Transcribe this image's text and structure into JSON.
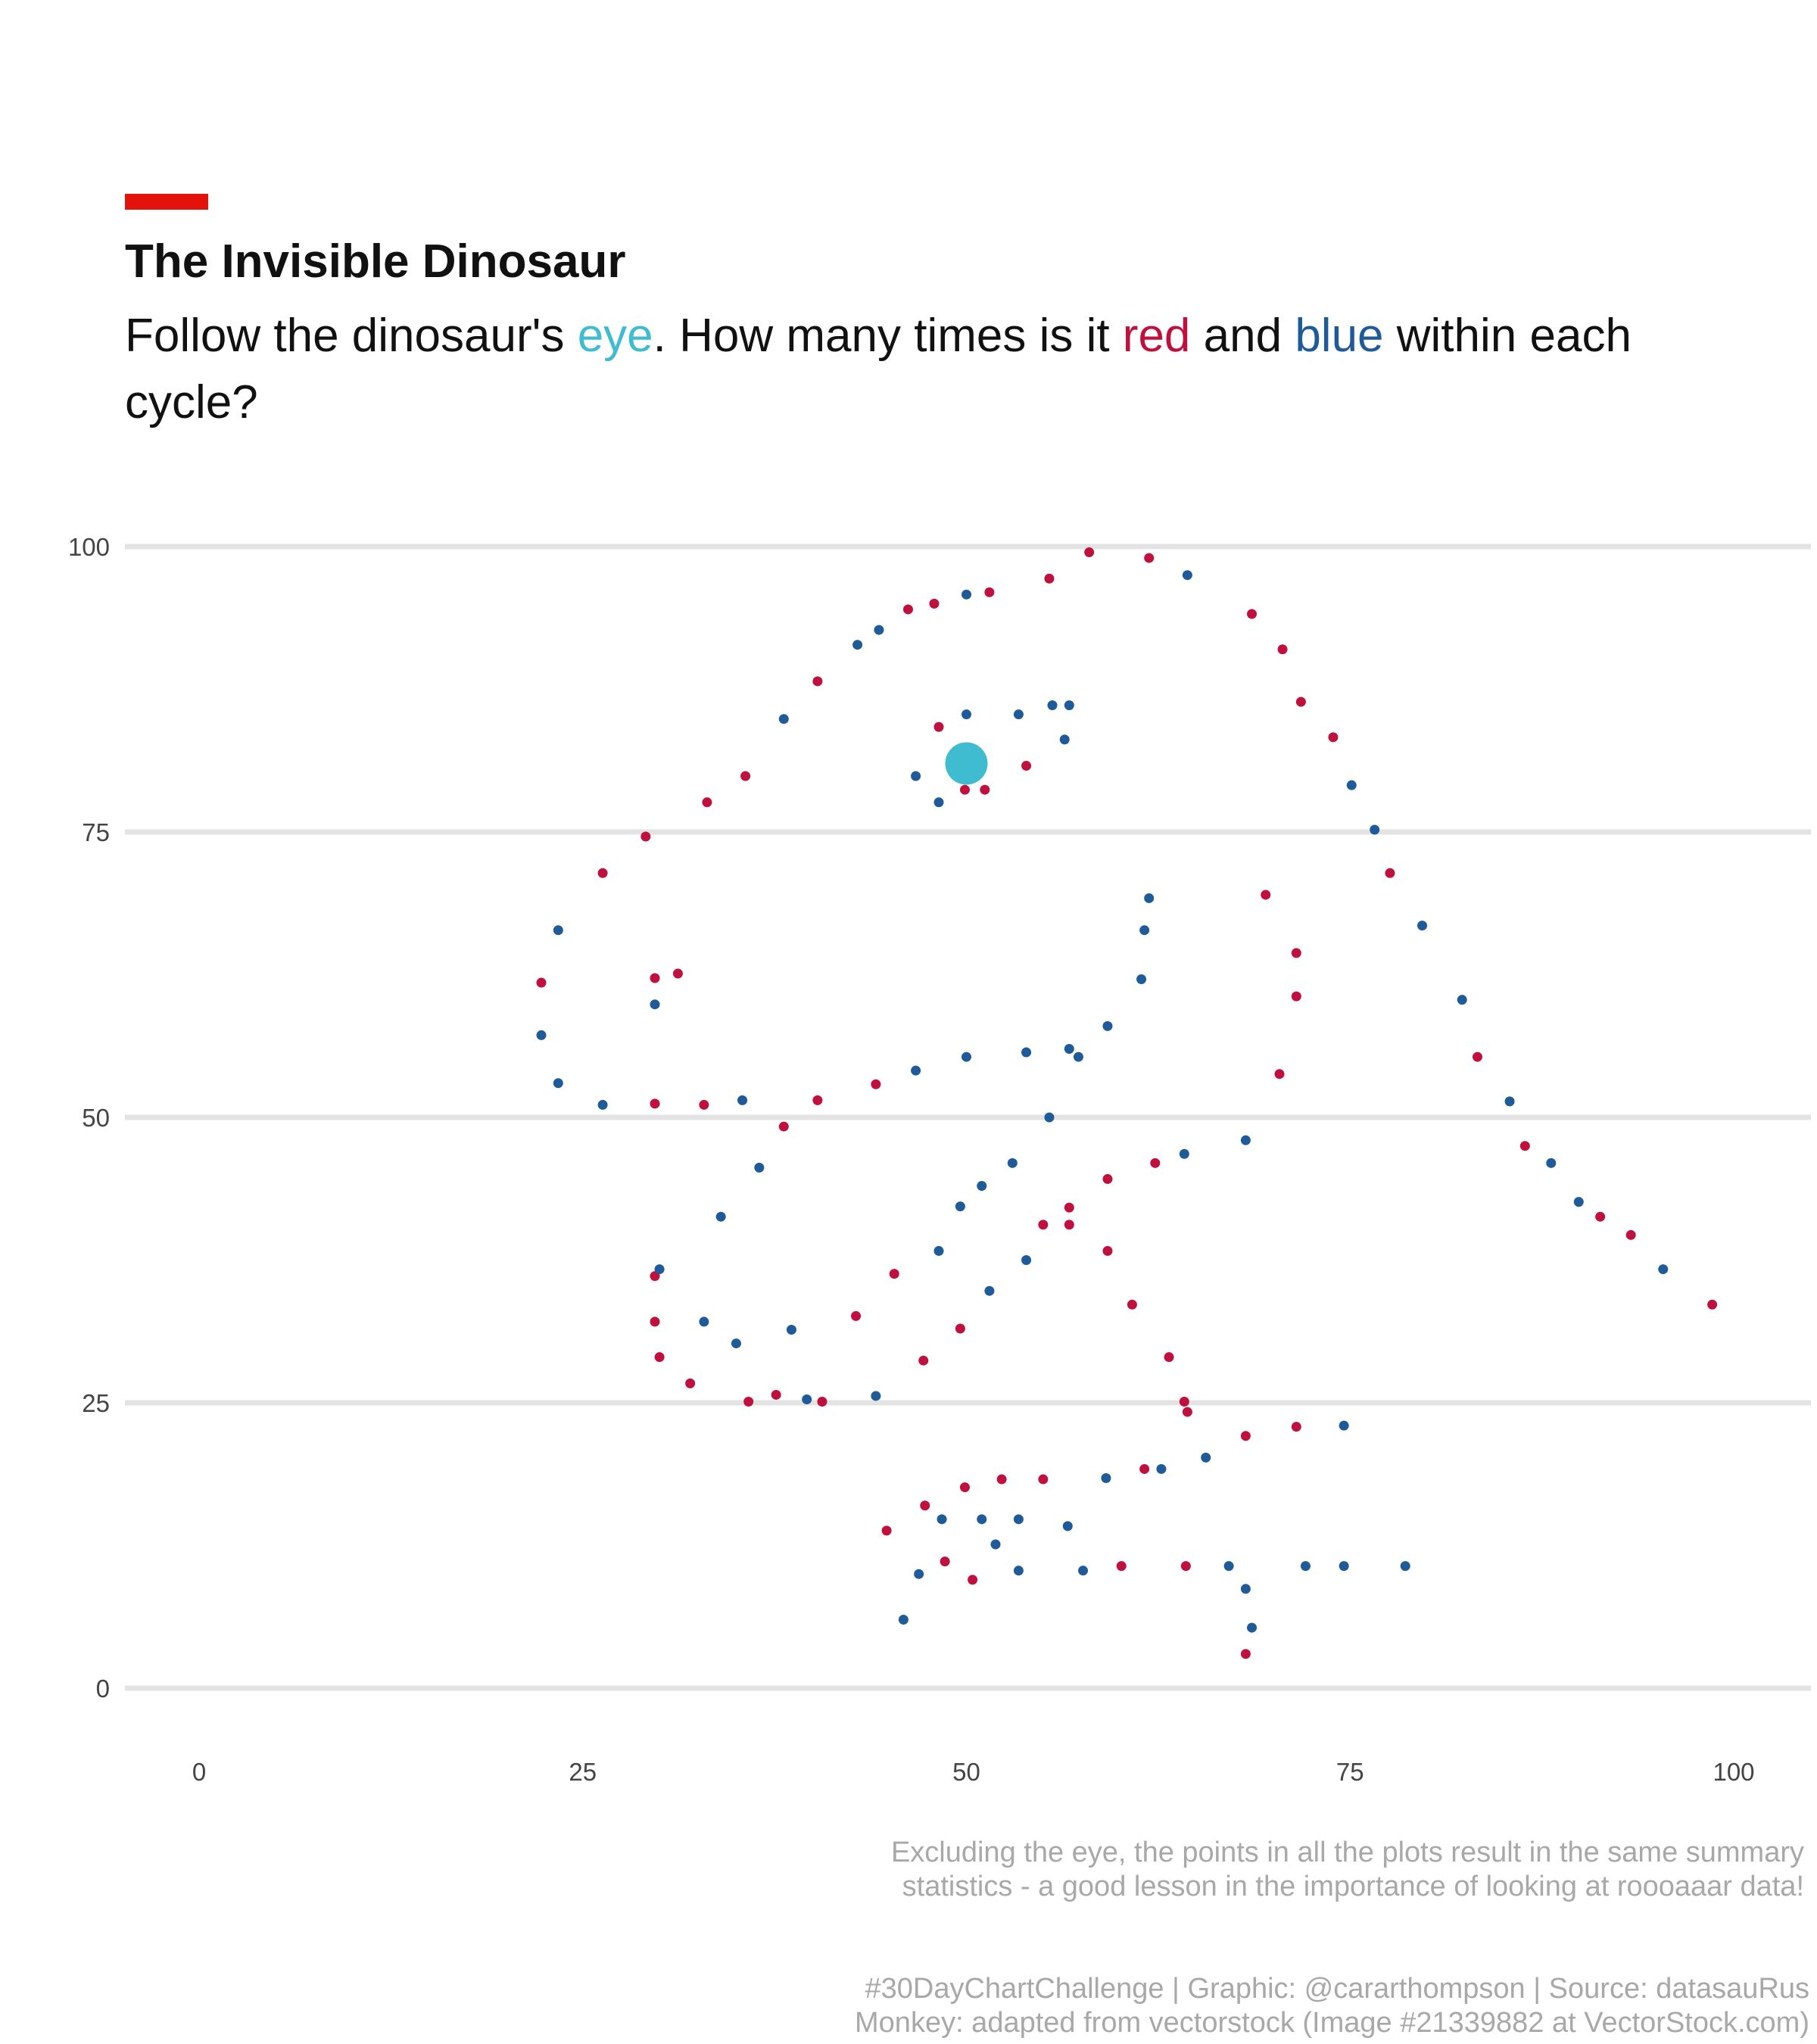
{
  "header": {
    "title": "The Invisible Dinosaur",
    "subtitle_1": "Follow the dinosaur's ",
    "subtitle_eye": "eye",
    "subtitle_2": ". How many times is it ",
    "subtitle_red": "red",
    "subtitle_3": " and ",
    "subtitle_blue": "blue",
    "subtitle_4": " within each cycle?"
  },
  "colors": {
    "accent": "#e3120b",
    "eye": "#40bcd0",
    "red": "#c0103e",
    "blue": "#1f5a99",
    "gridline": "#e3e3e3"
  },
  "note": {
    "line1": "Excluding the eye, the points in all the plots result in the same summary",
    "line2": "statistics - a good lesson in the importance of looking at roooaaar data!"
  },
  "caption": {
    "line1": "#30DayChartChallenge | Graphic: @cararthompson | Source: datasauRus",
    "line2": "Monkey: adapted from vectorstock (Image #21339882 at VectorStock.com)"
  },
  "chart_data": {
    "type": "scatter",
    "xlim": [
      0,
      100
    ],
    "ylim": [
      0,
      100
    ],
    "x_ticks": [
      0,
      25,
      50,
      75,
      100
    ],
    "y_ticks": [
      0,
      25,
      50,
      75,
      100
    ],
    "grid": "horizontal",
    "eye_point": {
      "x": 50.0,
      "y": 81.0
    },
    "series": [
      {
        "color": "red",
        "points": [
          [
            22.3,
            61.8
          ],
          [
            26.3,
            71.4
          ],
          [
            29.1,
            74.6
          ],
          [
            33.1,
            77.6
          ],
          [
            35.6,
            79.9
          ],
          [
            40.3,
            88.2
          ],
          [
            46.2,
            94.5
          ],
          [
            47.9,
            95.0
          ],
          [
            51.5,
            96.0
          ],
          [
            55.4,
            97.2
          ],
          [
            58.0,
            99.5
          ],
          [
            61.9,
            99.0
          ],
          [
            68.6,
            94.1
          ],
          [
            70.6,
            91.0
          ],
          [
            71.8,
            86.4
          ],
          [
            73.9,
            83.3
          ],
          [
            77.6,
            71.4
          ],
          [
            83.3,
            55.3
          ],
          [
            86.4,
            47.5
          ],
          [
            91.3,
            41.3
          ],
          [
            93.3,
            39.7
          ],
          [
            98.6,
            33.6
          ],
          [
            69.5,
            69.5
          ],
          [
            71.5,
            64.4
          ],
          [
            71.5,
            60.6
          ],
          [
            70.4,
            53.8
          ],
          [
            29.7,
            62.2
          ],
          [
            31.2,
            62.6
          ],
          [
            29.7,
            51.2
          ],
          [
            32.9,
            51.1
          ],
          [
            38.1,
            49.2
          ],
          [
            40.3,
            51.5
          ],
          [
            44.1,
            52.9
          ],
          [
            48.2,
            84.2
          ],
          [
            49.9,
            78.7
          ],
          [
            51.2,
            78.7
          ],
          [
            53.9,
            80.8
          ],
          [
            29.7,
            36.1
          ],
          [
            29.7,
            32.1
          ],
          [
            30.0,
            29.0
          ],
          [
            32.0,
            26.7
          ],
          [
            35.8,
            25.1
          ],
          [
            37.6,
            25.7
          ],
          [
            40.6,
            25.1
          ],
          [
            42.8,
            32.6
          ],
          [
            45.3,
            36.3
          ],
          [
            47.2,
            28.7
          ],
          [
            49.6,
            31.5
          ],
          [
            55.0,
            40.6
          ],
          [
            56.7,
            42.1
          ],
          [
            56.7,
            40.6
          ],
          [
            59.2,
            44.6
          ],
          [
            59.2,
            38.3
          ],
          [
            60.8,
            33.6
          ],
          [
            62.3,
            46.0
          ],
          [
            63.2,
            29.0
          ],
          [
            64.2,
            25.1
          ],
          [
            64.4,
            24.2
          ],
          [
            68.2,
            22.1
          ],
          [
            71.5,
            22.9
          ],
          [
            44.8,
            13.8
          ],
          [
            47.3,
            16.0
          ],
          [
            48.6,
            11.1
          ],
          [
            49.9,
            17.6
          ],
          [
            50.4,
            9.5
          ],
          [
            52.3,
            18.3
          ],
          [
            55.0,
            18.3
          ],
          [
            60.1,
            10.7
          ],
          [
            61.6,
            19.2
          ],
          [
            64.3,
            10.7
          ],
          [
            68.2,
            3.0
          ]
        ]
      },
      {
        "color": "blue",
        "points": [
          [
            23.4,
            66.4
          ],
          [
            22.3,
            57.2
          ],
          [
            23.4,
            53.0
          ],
          [
            26.3,
            51.1
          ],
          [
            35.4,
            51.5
          ],
          [
            38.1,
            84.9
          ],
          [
            42.9,
            91.4
          ],
          [
            44.3,
            92.7
          ],
          [
            50.0,
            95.8
          ],
          [
            64.4,
            97.5
          ],
          [
            75.1,
            79.1
          ],
          [
            76.6,
            75.2
          ],
          [
            79.7,
            66.8
          ],
          [
            82.3,
            60.3
          ],
          [
            85.4,
            51.4
          ],
          [
            88.1,
            46.0
          ],
          [
            89.9,
            42.6
          ],
          [
            95.4,
            36.7
          ],
          [
            29.7,
            59.9
          ],
          [
            46.7,
            54.1
          ],
          [
            50.0,
            55.3
          ],
          [
            53.9,
            55.7
          ],
          [
            56.7,
            56.0
          ],
          [
            57.3,
            55.3
          ],
          [
            59.2,
            58.0
          ],
          [
            61.4,
            62.1
          ],
          [
            61.6,
            66.4
          ],
          [
            61.9,
            69.2
          ],
          [
            46.7,
            79.9
          ],
          [
            48.2,
            77.6
          ],
          [
            50.0,
            85.3
          ],
          [
            53.4,
            85.3
          ],
          [
            55.6,
            86.1
          ],
          [
            56.7,
            86.1
          ],
          [
            56.4,
            83.1
          ],
          [
            55.4,
            50.0
          ],
          [
            30.0,
            36.7
          ],
          [
            32.9,
            32.1
          ],
          [
            35.0,
            30.2
          ],
          [
            34.0,
            41.3
          ],
          [
            36.5,
            45.6
          ],
          [
            38.6,
            31.4
          ],
          [
            39.6,
            25.3
          ],
          [
            44.1,
            25.6
          ],
          [
            48.2,
            38.3
          ],
          [
            49.6,
            42.2
          ],
          [
            51.0,
            44.0
          ],
          [
            51.5,
            34.8
          ],
          [
            53.0,
            46.0
          ],
          [
            53.9,
            37.5
          ],
          [
            64.2,
            46.8
          ],
          [
            68.2,
            48.0
          ],
          [
            74.6,
            23.0
          ],
          [
            65.6,
            20.2
          ],
          [
            62.7,
            19.2
          ],
          [
            59.1,
            18.4
          ],
          [
            45.9,
            6.0
          ],
          [
            46.9,
            10.0
          ],
          [
            48.4,
            14.8
          ],
          [
            51.0,
            14.8
          ],
          [
            51.9,
            12.6
          ],
          [
            53.4,
            10.3
          ],
          [
            53.4,
            14.8
          ],
          [
            56.6,
            14.2
          ],
          [
            57.6,
            10.3
          ],
          [
            67.1,
            10.7
          ],
          [
            68.2,
            8.7
          ],
          [
            68.6,
            5.3
          ],
          [
            72.1,
            10.7
          ],
          [
            74.6,
            10.7
          ],
          [
            78.6,
            10.7
          ]
        ]
      }
    ]
  }
}
